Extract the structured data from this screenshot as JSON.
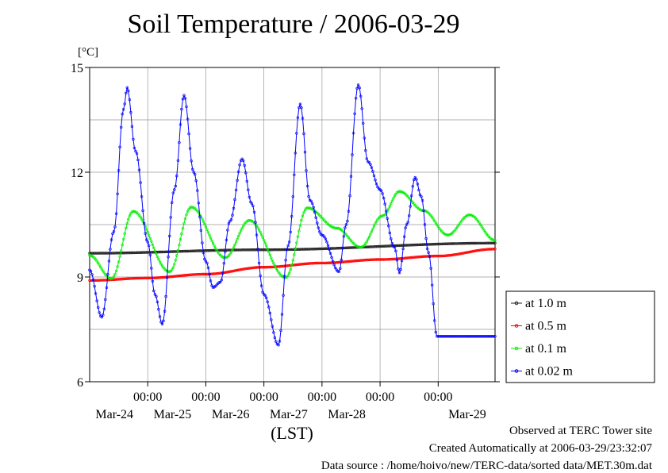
{
  "chart_data": {
    "type": "line",
    "title": "Soil Temperature / 2006-03-29",
    "ylabel": "[°C]",
    "xlabel": "(LST)",
    "ylim": [
      6,
      15
    ],
    "yticks": [
      6,
      9,
      12,
      15
    ],
    "xlim": [
      "2006-03-23 00:00",
      "2006-03-29 23:30"
    ],
    "xticks": [
      {
        "time": "2006-03-24 00:00",
        "top": "00:00",
        "bottom": "Mar-24"
      },
      {
        "time": "2006-03-25 00:00",
        "top": "00:00",
        "bottom": "Mar-25"
      },
      {
        "time": "2006-03-26 00:00",
        "top": "00:00",
        "bottom": "Mar-26"
      },
      {
        "time": "2006-03-27 00:00",
        "top": "00:00",
        "bottom": "Mar-27"
      },
      {
        "time": "2006-03-28 00:00",
        "top": "00:00",
        "bottom": "Mar-28"
      },
      {
        "time": "2006-03-29 00:00",
        "top": "00:00",
        "bottom": ""
      }
    ],
    "extra_date_labels": [
      {
        "time": "2006-03-29 12:00",
        "label": "Mar-29"
      }
    ],
    "grid": true,
    "legend_position": "right",
    "series": [
      {
        "name": "at 1.0 m",
        "color": "#222222",
        "points": [
          [
            "2006-03-23 00:00",
            9.68
          ],
          [
            "2006-03-26 00:00",
            9.78
          ],
          [
            "2006-03-29 23:30",
            9.97
          ]
        ]
      },
      {
        "name": "at 0.5 m",
        "color": "#ff0000",
        "points": [
          [
            "2006-03-23 00:00",
            8.9
          ],
          [
            "2006-03-24 00:00",
            8.97
          ],
          [
            "2006-03-25 00:00",
            9.08
          ],
          [
            "2006-03-26 00:00",
            9.28
          ],
          [
            "2006-03-27 00:00",
            9.4
          ],
          [
            "2006-03-28 00:00",
            9.5
          ],
          [
            "2006-03-29 00:00",
            9.6
          ],
          [
            "2006-03-29 23:30",
            9.8
          ]
        ]
      },
      {
        "name": "at 0.1 m",
        "color": "#00ee00",
        "points": [
          [
            "2006-03-23 00:00",
            9.62
          ],
          [
            "2006-03-23 09:00",
            8.95
          ],
          [
            "2006-03-23 18:00",
            10.88
          ],
          [
            "2006-03-24 09:00",
            9.15
          ],
          [
            "2006-03-24 18:00",
            11.0
          ],
          [
            "2006-03-25 08:00",
            9.55
          ],
          [
            "2006-03-25 18:00",
            10.62
          ],
          [
            "2006-03-26 09:00",
            8.98
          ],
          [
            "2006-03-26 18:00",
            10.98
          ],
          [
            "2006-03-27 06:00",
            10.4
          ],
          [
            "2006-03-27 16:00",
            9.85
          ],
          [
            "2006-03-28 01:00",
            10.75
          ],
          [
            "2006-03-28 08:00",
            11.45
          ],
          [
            "2006-03-28 18:00",
            10.9
          ],
          [
            "2006-03-29 04:00",
            10.2
          ],
          [
            "2006-03-29 13:00",
            10.78
          ],
          [
            "2006-03-29 23:30",
            10.05
          ]
        ]
      },
      {
        "name": "at 0.02 m",
        "color": "#0000ff",
        "points": [
          [
            "2006-03-23 00:00",
            9.2
          ],
          [
            "2006-03-23 05:00",
            7.85
          ],
          [
            "2006-03-23 10:00",
            10.3
          ],
          [
            "2006-03-23 14:00",
            13.8
          ],
          [
            "2006-03-23 15:30",
            14.42
          ],
          [
            "2006-03-23 19:00",
            12.6
          ],
          [
            "2006-03-24 00:00",
            10.0
          ],
          [
            "2006-03-24 03:00",
            8.5
          ],
          [
            "2006-03-24 06:00",
            7.65
          ],
          [
            "2006-03-24 11:00",
            11.5
          ],
          [
            "2006-03-24 15:00",
            14.2
          ],
          [
            "2006-03-24 19:00",
            12.0
          ],
          [
            "2006-03-25 00:00",
            9.45
          ],
          [
            "2006-03-25 03:00",
            8.7
          ],
          [
            "2006-03-25 06:00",
            8.85
          ],
          [
            "2006-03-25 10:00",
            10.6
          ],
          [
            "2006-03-25 15:00",
            12.38
          ],
          [
            "2006-03-25 19:00",
            11.1
          ],
          [
            "2006-03-26 00:00",
            8.5
          ],
          [
            "2006-03-26 06:00",
            7.05
          ],
          [
            "2006-03-26 10:00",
            9.9
          ],
          [
            "2006-03-26 15:00",
            13.95
          ],
          [
            "2006-03-26 19:00",
            11.2
          ],
          [
            "2006-03-27 00:00",
            10.2
          ],
          [
            "2006-03-27 07:00",
            9.15
          ],
          [
            "2006-03-27 10:00",
            10.5
          ],
          [
            "2006-03-27 15:00",
            14.5
          ],
          [
            "2006-03-27 19:00",
            12.3
          ],
          [
            "2006-03-28 00:00",
            11.5
          ],
          [
            "2006-03-28 06:00",
            9.85
          ],
          [
            "2006-03-28 08:00",
            9.12
          ],
          [
            "2006-03-28 11:00",
            10.5
          ],
          [
            "2006-03-28 14:30",
            11.85
          ],
          [
            "2006-03-28 17:00",
            11.3
          ],
          [
            "2006-03-28 20:00",
            9.7
          ],
          [
            "2006-03-28 23:30",
            7.3
          ]
        ]
      }
    ]
  },
  "footer": {
    "site": "Observed at TERC Tower site",
    "created": "Created Automatically at 2006-03-29/23:32:07",
    "source": "Data source : /home/hoivo/new/TERC-data/sorted  data/MET.30m.dat"
  }
}
